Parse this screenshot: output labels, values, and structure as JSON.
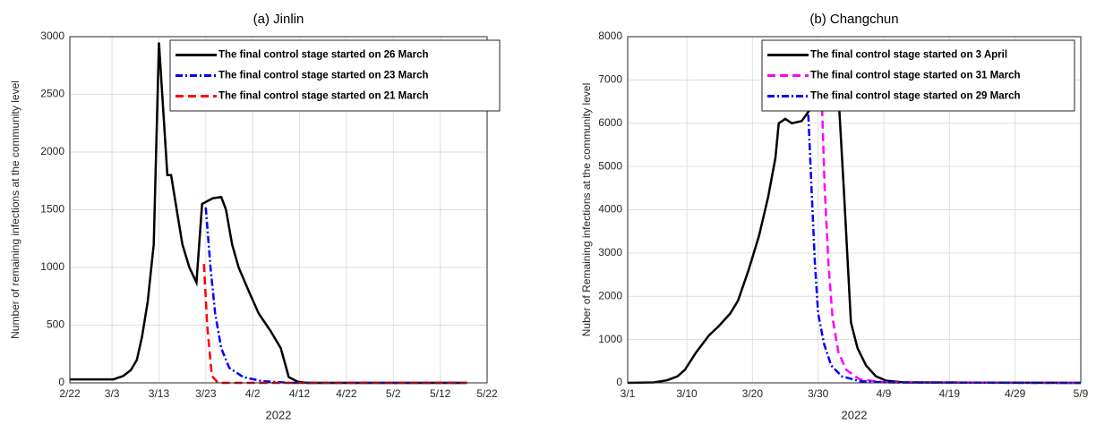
{
  "chart_data": [
    {
      "type": "line",
      "title": "(a) Jinlin",
      "xlabel": "2022",
      "ylabel": "Number of remaining infections at the community level",
      "xlim": [
        53,
        142
      ],
      "ylim": [
        0,
        3000
      ],
      "grid": true,
      "legend": "upper right",
      "xticks": [
        {
          "value": 53,
          "label": "2/22"
        },
        {
          "value": 62,
          "label": "3/3"
        },
        {
          "value": 72,
          "label": "3/13"
        },
        {
          "value": 82,
          "label": "3/23"
        },
        {
          "value": 92,
          "label": "4/2"
        },
        {
          "value": 102,
          "label": "4/12"
        },
        {
          "value": 112,
          "label": "4/22"
        },
        {
          "value": 122,
          "label": "5/2"
        },
        {
          "value": 132,
          "label": "5/12"
        },
        {
          "value": 142,
          "label": "5/22"
        }
      ],
      "yticks": [
        0,
        500,
        1000,
        1500,
        2000,
        2500,
        3000
      ],
      "series": [
        {
          "name": "The final control stage started on 26 March",
          "color": "#000000",
          "linestyle": "solid",
          "x": [
            53,
            62.3,
            64.4,
            66,
            67.3,
            68.4,
            69.6,
            70.9,
            72,
            73.8,
            74.6,
            76,
            77,
            78.5,
            80,
            81.2,
            83.5,
            85.3,
            86.3,
            87.6,
            89,
            91.1,
            93.3,
            95.8,
            98,
            99.7,
            101.6,
            103.6,
            137.7
          ],
          "values": [
            30,
            30,
            60,
            110,
            200,
            400,
            700,
            1200,
            2950,
            1800,
            1800,
            1450,
            1200,
            1000,
            870,
            1550,
            1600,
            1610,
            1500,
            1200,
            1000,
            800,
            600,
            450,
            300,
            50,
            10,
            0,
            0
          ]
        },
        {
          "name": "The final control stage started on 23 March",
          "color": "#0000ff",
          "linestyle": "dashdot",
          "x": [
            82,
            83,
            84,
            85.3,
            87,
            90,
            94,
            100,
            137
          ],
          "values": [
            1520,
            1000,
            600,
            300,
            130,
            50,
            15,
            0,
            0
          ]
        },
        {
          "name": "The final control stage started on 21 March",
          "color": "#ff0000",
          "linestyle": "dashed",
          "x": [
            81.6,
            82.3,
            83.3,
            84.6,
            137.7
          ],
          "values": [
            1030,
            500,
            60,
            0,
            0
          ]
        }
      ]
    },
    {
      "type": "line",
      "title": "(b) Changchun",
      "xlabel": "2022",
      "ylabel": "Nuber of Remaining infections at the community level",
      "xlim": [
        60,
        129
      ],
      "ylim": [
        0,
        8000
      ],
      "grid": true,
      "legend": "upper right",
      "xticks": [
        {
          "value": 60,
          "label": "3/1"
        },
        {
          "value": 69,
          "label": "3/10"
        },
        {
          "value": 79,
          "label": "3/20"
        },
        {
          "value": 89,
          "label": "3/30"
        },
        {
          "value": 99,
          "label": "4/9"
        },
        {
          "value": 109,
          "label": "4/19"
        },
        {
          "value": 119,
          "label": "4/29"
        },
        {
          "value": 129,
          "label": "5/9"
        }
      ],
      "yticks": [
        0,
        1000,
        2000,
        3000,
        4000,
        5000,
        6000,
        7000,
        8000
      ],
      "series": [
        {
          "name": "The final control stage started on 3 April",
          "color": "#000000",
          "linestyle": "solid",
          "x": [
            60,
            64,
            66,
            67.6,
            68.7,
            70.4,
            72.4,
            73.8,
            75.6,
            76.8,
            78.4,
            80,
            81.4,
            82.5,
            83,
            84,
            85,
            86.5,
            87.7,
            88.8,
            91.2,
            92.2,
            92.9,
            94,
            95,
            96.3,
            97.8,
            99.4,
            102,
            129
          ],
          "values": [
            0,
            10,
            60,
            150,
            300,
            700,
            1100,
            1300,
            1600,
            1900,
            2600,
            3400,
            4300,
            5200,
            6000,
            6100,
            6000,
            6050,
            6300,
            6350,
            6400,
            6400,
            4500,
            1400,
            800,
            400,
            150,
            50,
            10,
            0
          ]
        },
        {
          "name": "The final control stage started on 31 March",
          "color": "#ff00ff",
          "linestyle": "dashed",
          "x": [
            89.6,
            90,
            90.6,
            91.2,
            92.1,
            93.3,
            95.3,
            98.7,
            102,
            129
          ],
          "values": [
            6350,
            4500,
            2700,
            1500,
            700,
            300,
            80,
            20,
            5,
            0
          ]
        },
        {
          "name": "The final control stage started on 29 March",
          "color": "#0000ff",
          "linestyle": "dashdot",
          "x": [
            87.5,
            88,
            88.5,
            89,
            89.9,
            91,
            92.6,
            95.3,
            99.4,
            129
          ],
          "values": [
            6200,
            4500,
            2800,
            1600,
            900,
            400,
            150,
            40,
            10,
            0
          ]
        }
      ]
    }
  ]
}
